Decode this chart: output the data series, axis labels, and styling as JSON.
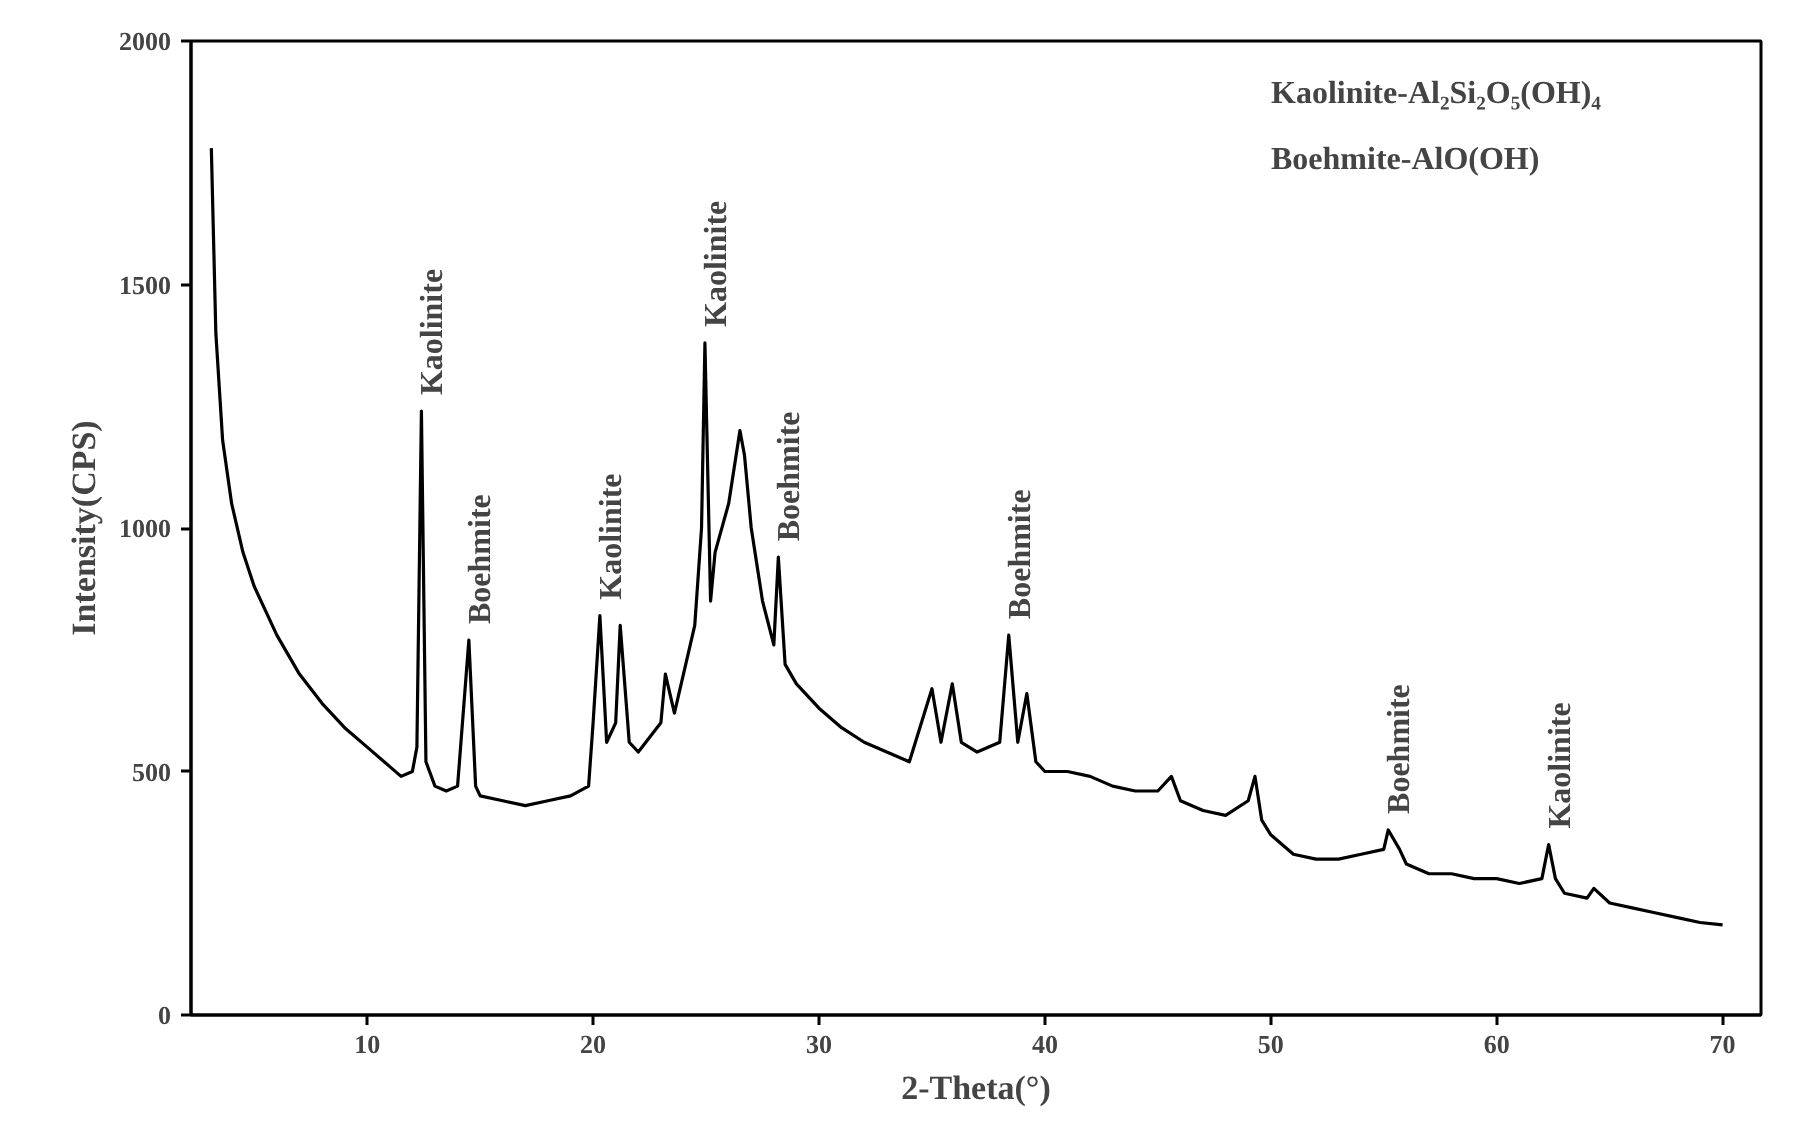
{
  "chart_data": {
    "type": "line",
    "xlabel": "2-Theta(°)",
    "ylabel": "Intensity(CPS)",
    "xlim": [
      2.2,
      71.7
    ],
    "ylim": [
      0,
      2000
    ],
    "xticks": [
      10,
      20,
      30,
      40,
      50,
      60,
      70
    ],
    "yticks": [
      0,
      500,
      1000,
      1500,
      2000
    ],
    "grid": false,
    "marker": "none",
    "line_style": "solid",
    "series": [
      {
        "color": "#000000",
        "x": [
          3.1,
          3.3,
          3.6,
          4,
          4.5,
          5,
          6,
          7,
          8,
          9,
          10,
          11,
          11.5,
          12,
          12.2,
          12.4,
          12.6,
          13,
          13.5,
          14,
          14.5,
          14.8,
          15,
          16,
          17,
          18,
          19,
          19.8,
          20.0,
          20.3,
          20.6,
          21.0,
          21.2,
          21.6,
          22.0,
          23,
          23.2,
          23.6,
          24.0,
          24.5,
          24.8,
          24.95,
          25.2,
          25.4,
          26,
          26.5,
          26.7,
          27,
          27.5,
          28,
          28.2,
          28.5,
          29,
          30,
          31,
          32,
          33,
          34,
          35,
          35.4,
          35.9,
          36.3,
          37,
          38,
          38.4,
          38.8,
          39.2,
          39.6,
          40,
          41,
          42,
          43,
          44,
          45,
          45.6,
          46,
          47,
          48,
          49,
          49.3,
          49.6,
          50,
          51,
          52,
          53,
          54,
          55,
          55.2,
          55.7,
          56,
          57,
          58,
          59,
          60,
          61,
          62,
          62.3,
          62.6,
          63,
          64,
          64.3,
          65,
          66,
          67,
          68,
          69,
          70
        ],
        "values": [
          1780,
          1400,
          1180,
          1050,
          950,
          880,
          780,
          700,
          640,
          590,
          550,
          510,
          490,
          500,
          550,
          1240,
          520,
          470,
          460,
          470,
          770,
          470,
          450,
          440,
          430,
          440,
          450,
          470,
          600,
          820,
          560,
          600,
          800,
          560,
          540,
          600,
          700,
          620,
          700,
          800,
          1000,
          1380,
          850,
          950,
          1050,
          1200,
          1150,
          1000,
          850,
          760,
          940,
          720,
          680,
          630,
          590,
          560,
          540,
          520,
          670,
          560,
          680,
          560,
          540,
          560,
          780,
          560,
          660,
          520,
          500,
          500,
          490,
          470,
          460,
          460,
          490,
          440,
          420,
          410,
          440,
          490,
          400,
          370,
          330,
          320,
          320,
          330,
          340,
          380,
          340,
          310,
          290,
          290,
          280,
          280,
          270,
          280,
          350,
          280,
          250,
          240,
          260,
          230,
          220,
          210,
          200,
          190,
          185
        ]
      }
    ],
    "annotations": [
      {
        "text": "Kaolinite",
        "x": 12.4,
        "y": 1240
      },
      {
        "text": "Boehmite",
        "x": 14.5,
        "y": 770
      },
      {
        "text": "Kaolinite",
        "x": 20.3,
        "y": 820
      },
      {
        "text": "Kaolinite",
        "x": 24.95,
        "y": 1380
      },
      {
        "text": "Boehmite",
        "x": 28.2,
        "y": 940
      },
      {
        "text": "Boehmite",
        "x": 38.4,
        "y": 780
      },
      {
        "text": "Boehmite",
        "x": 55.2,
        "y": 380
      },
      {
        "text": "Kaolinite",
        "x": 62.3,
        "y": 350
      },
      "Kaolinite-Al₂Si₂O₅(OH)₄",
      "Boehmite-AlO(OH)"
    ]
  }
}
